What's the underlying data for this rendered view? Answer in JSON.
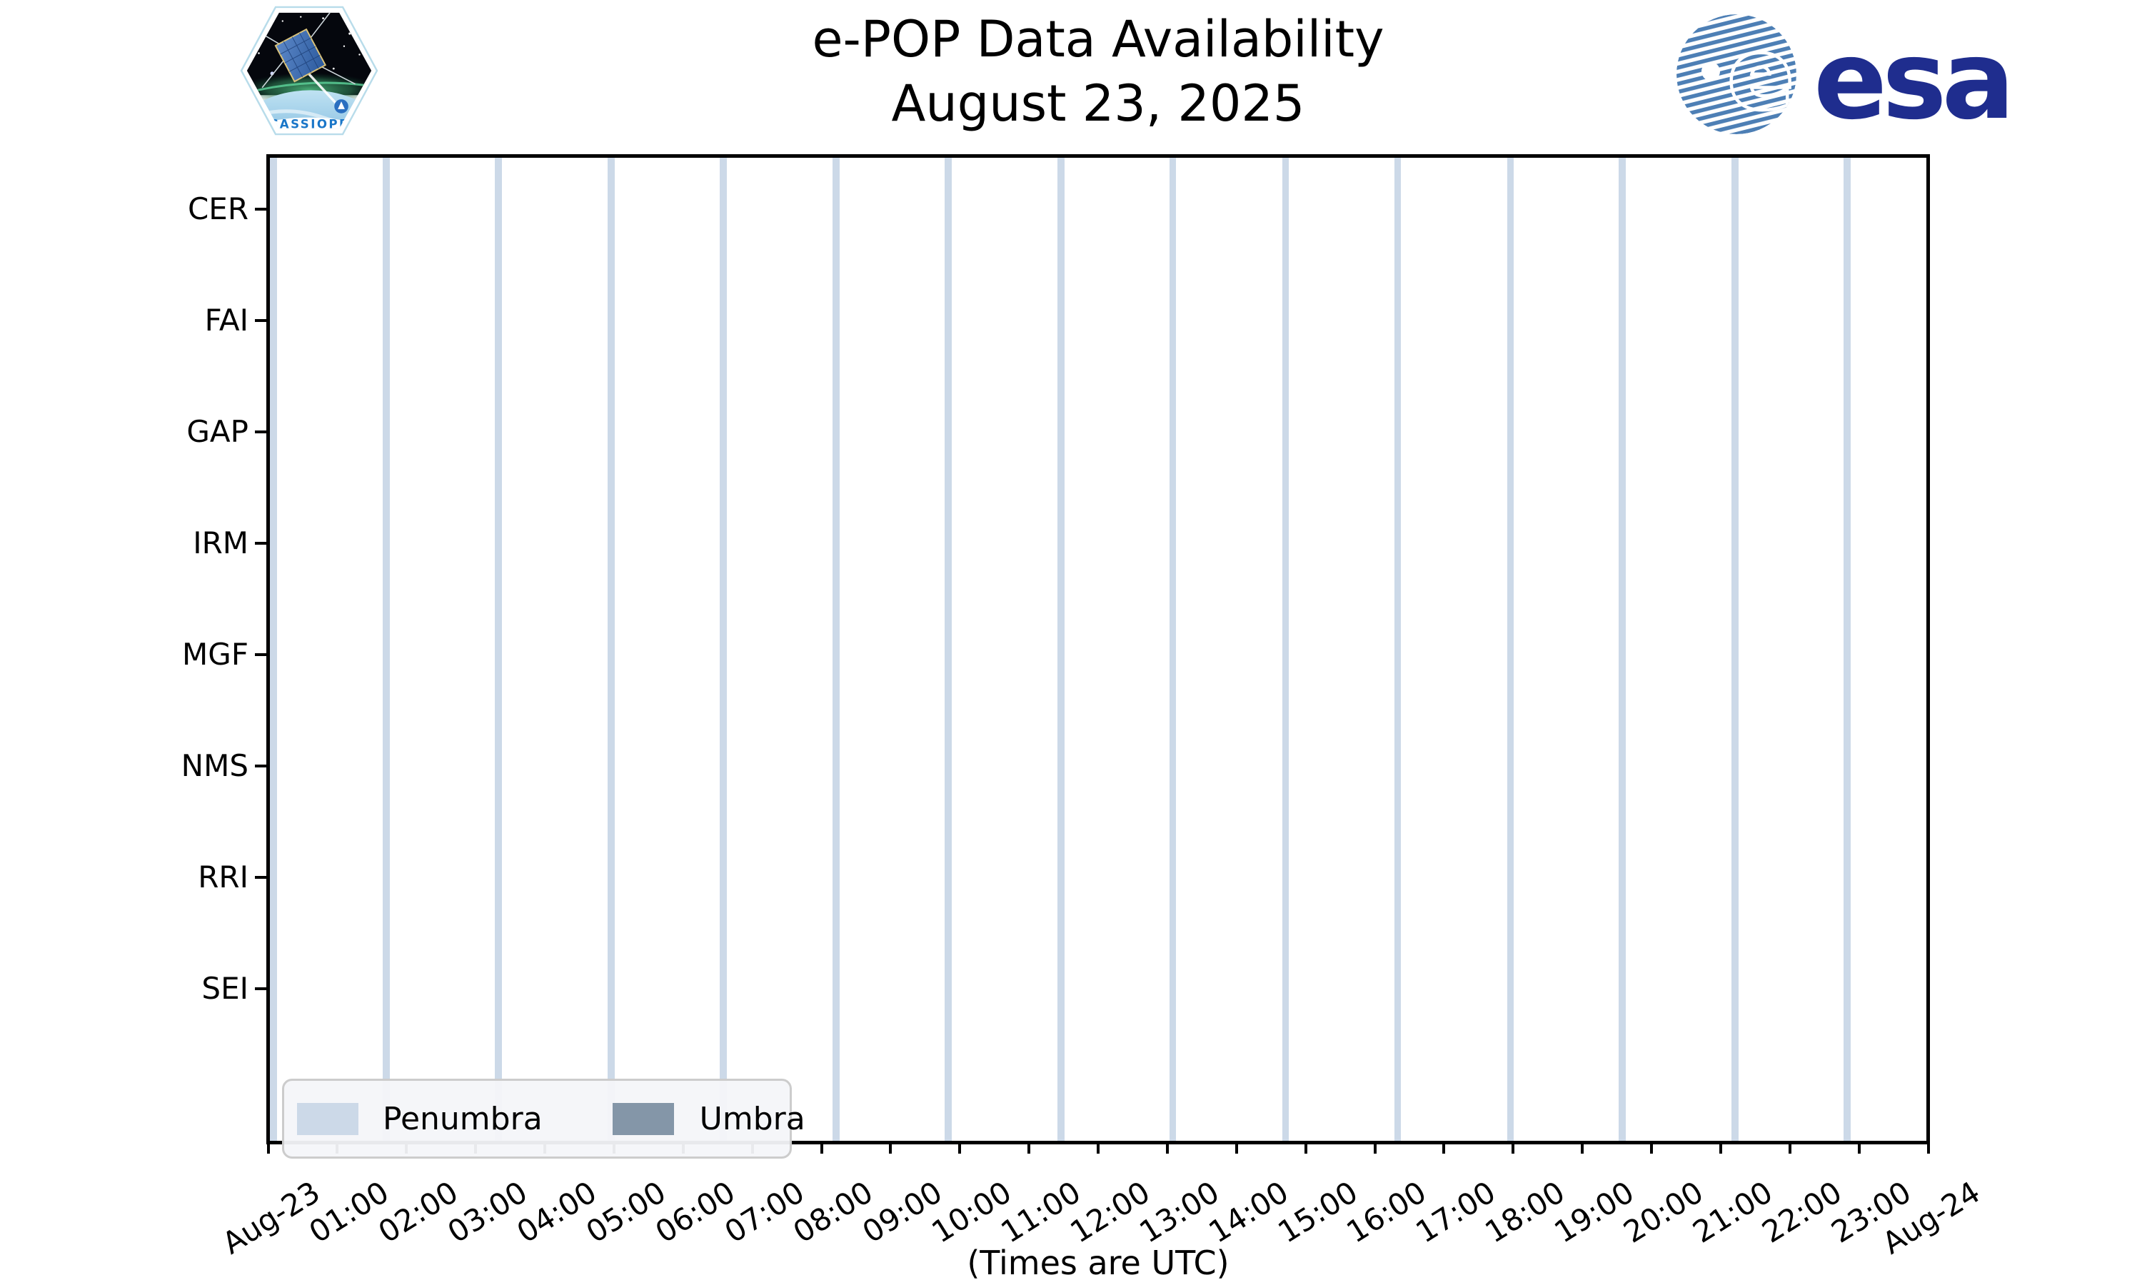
{
  "header": {
    "title_line1": "e-POP Data Availability",
    "title_line2": "August 23, 2025",
    "cassiope_patch_label": "CASSIOPE",
    "esa_logo_text": "esa"
  },
  "chart_data": {
    "type": "timeline-bands",
    "title": "e-POP Data Availability",
    "subtitle": "August 23, 2025",
    "y_categories": [
      "CER",
      "FAI",
      "GAP",
      "IRM",
      "MGF",
      "NMS",
      "RRI",
      "SEI"
    ],
    "x_tick_labels": [
      "Aug-23",
      "01:00",
      "02:00",
      "03:00",
      "04:00",
      "05:00",
      "06:00",
      "07:00",
      "08:00",
      "09:00",
      "10:00",
      "11:00",
      "12:00",
      "13:00",
      "14:00",
      "15:00",
      "16:00",
      "17:00",
      "18:00",
      "19:00",
      "20:00",
      "21:00",
      "22:00",
      "23:00",
      "Aug-24"
    ],
    "x_range_hours": [
      0,
      24
    ],
    "x_axis_note": "(Times are UTC)",
    "grid": false,
    "legend_position": "lower-left",
    "legend": [
      {
        "label": "Penumbra",
        "color": "#ccd9e8"
      },
      {
        "label": "Umbra",
        "color": "#8496a8"
      }
    ],
    "penumbra_band_centers_utc_hours": [
      0.08,
      1.71,
      3.33,
      4.96,
      6.58,
      8.21,
      9.83,
      11.46,
      13.08,
      14.71,
      16.33,
      17.96,
      19.58,
      21.21,
      22.83
    ],
    "penumbra_band_width_hours": 0.1,
    "umbra_band_centers_utc_hours": [],
    "instrument_data_intervals": []
  },
  "colors": {
    "background": "#ffffff",
    "axis": "#000000",
    "penumbra": "#ccd9e8",
    "umbra": "#8496a8",
    "legend_border": "#cccccc",
    "legend_background": "#f4f5f9",
    "esa_navy": "#1f2d8e",
    "esa_stripe_blue": "#4d7fb5",
    "patch_outline": "#b8dcea",
    "patch_text_blue": "#1976c8"
  }
}
